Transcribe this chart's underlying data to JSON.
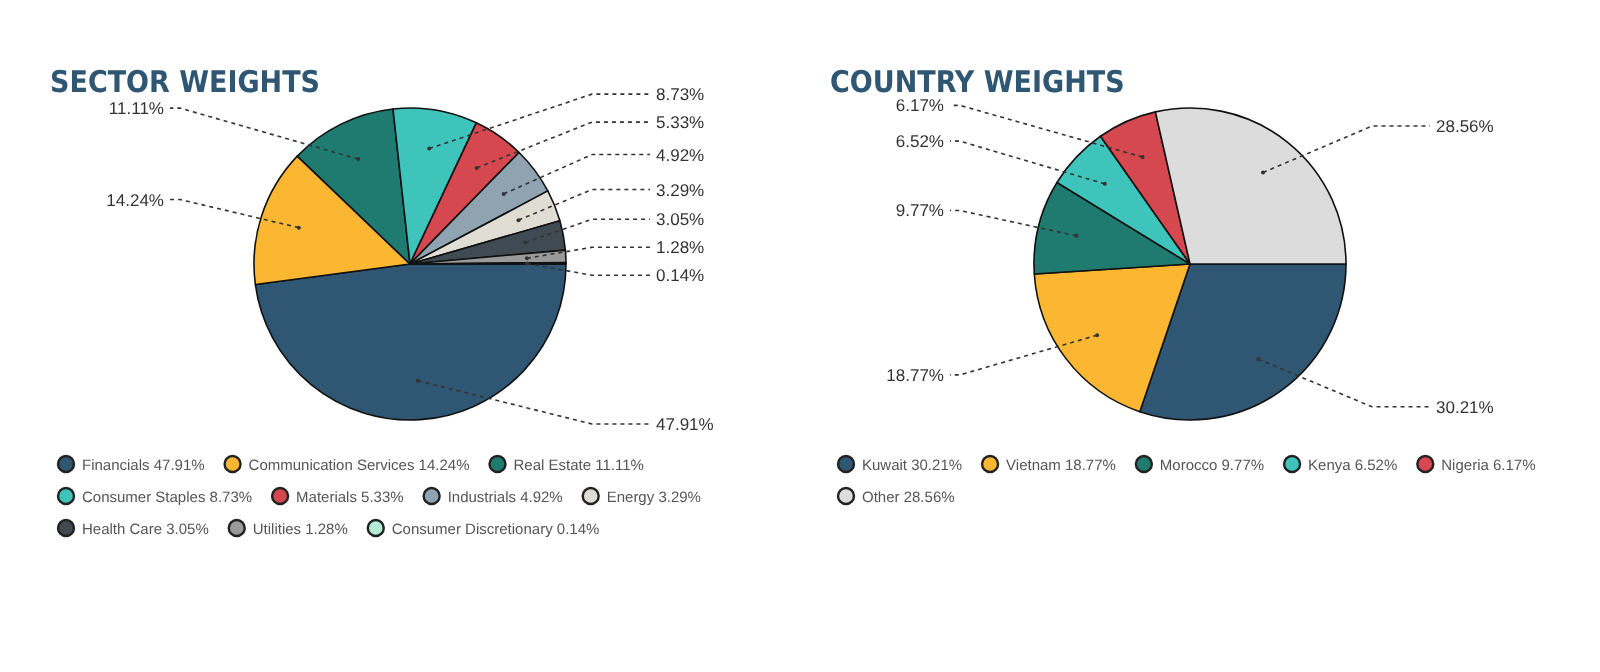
{
  "chart_data": [
    {
      "type": "pie",
      "title": "SECTOR WEIGHTS",
      "legend": "bottom",
      "categories": [
        "Financials",
        "Communication Services",
        "Real Estate",
        "Consumer Staples",
        "Materials",
        "Industrials",
        "Energy",
        "Health Care",
        "Utilities",
        "Consumer Discretionary"
      ],
      "values": [
        47.91,
        14.24,
        11.11,
        8.73,
        5.33,
        4.92,
        3.29,
        3.05,
        1.28,
        0.14
      ],
      "value_labels": [
        "47.91%",
        "14.24%",
        "11.11%",
        "8.73%",
        "5.33%",
        "4.92%",
        "3.29%",
        "3.05%",
        "1.28%",
        "0.14%"
      ],
      "colors": [
        "#2f5773",
        "#fbb731",
        "#1f7b70",
        "#3fc4bc",
        "#d5484f",
        "#8fa3b0",
        "#e0ddd5",
        "#3f4a52",
        "#9a9a9a",
        "#b5ecd6"
      ]
    },
    {
      "type": "pie",
      "title": "COUNTRY WEIGHTS",
      "legend": "bottom",
      "categories": [
        "Kuwait",
        "Vietnam",
        "Morocco",
        "Kenya",
        "Nigeria",
        "Other"
      ],
      "values": [
        30.21,
        18.77,
        9.77,
        6.52,
        6.17,
        28.56
      ],
      "value_labels": [
        "30.21%",
        "18.77%",
        "9.77%",
        "6.52%",
        "6.17%",
        "28.56%"
      ],
      "colors": [
        "#2f5773",
        "#fbb731",
        "#1f7b70",
        "#3fc4bc",
        "#d5484f",
        "#dcdcdc"
      ]
    }
  ]
}
